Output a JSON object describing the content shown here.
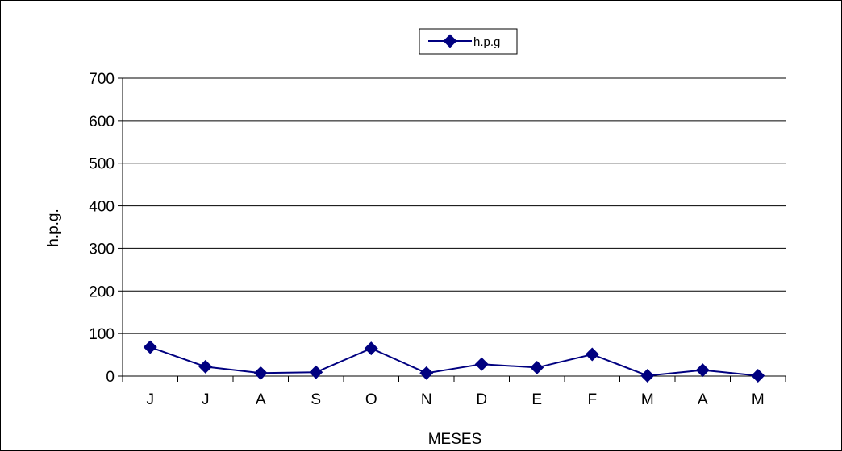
{
  "chart_data": {
    "type": "line",
    "title": "",
    "xlabel": "MESES",
    "ylabel": "h.p.g.",
    "categories": [
      "J",
      "J",
      "A",
      "S",
      "O",
      "N",
      "D",
      "E",
      "F",
      "M",
      "A",
      "M"
    ],
    "ylim": [
      0,
      700
    ],
    "yticks": [
      0,
      100,
      200,
      300,
      400,
      500,
      600,
      700
    ],
    "grid": true,
    "legend": "top-center",
    "series": [
      {
        "name": "h.p.g",
        "color": "#000080",
        "marker": "diamond",
        "values": [
          68,
          22,
          7,
          9,
          65,
          7,
          28,
          20,
          51,
          1,
          14,
          1
        ]
      }
    ]
  }
}
